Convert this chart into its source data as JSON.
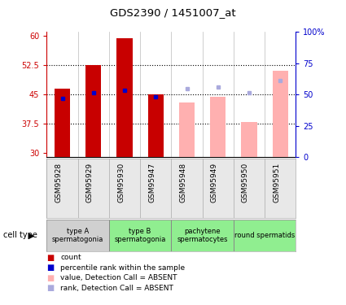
{
  "title": "GDS2390 / 1451007_at",
  "samples": [
    "GSM95928",
    "GSM95929",
    "GSM95930",
    "GSM95947",
    "GSM95948",
    "GSM95949",
    "GSM95950",
    "GSM95951"
  ],
  "ylim_left": [
    29,
    61
  ],
  "ylim_right": [
    0,
    100
  ],
  "yticks_left": [
    30,
    37.5,
    45,
    52.5,
    60
  ],
  "yticks_right": [
    0,
    25,
    50,
    75,
    100
  ],
  "ytick_labels_left": [
    "30",
    "37.5",
    "45",
    "52.5",
    "60"
  ],
  "ytick_labels_right": [
    "0",
    "25",
    "50",
    "75",
    "100%"
  ],
  "count_bars_present": [
    46.5,
    52.5,
    59.5,
    45.0,
    null,
    null,
    null,
    null
  ],
  "count_color": "#c80000",
  "absent_value_bars": [
    null,
    null,
    null,
    null,
    43.0,
    44.5,
    38.0,
    51.0
  ],
  "absent_value_color": "#ffb0b0",
  "percentile_rank_present": [
    44.0,
    45.5,
    46.0,
    44.5,
    null,
    null,
    null,
    null
  ],
  "percentile_color": "#0000cc",
  "rank_absent": [
    null,
    null,
    null,
    null,
    46.5,
    47.0,
    45.5,
    48.5
  ],
  "rank_absent_color": "#aaaadd",
  "cell_type_groups": [
    {
      "label": "type A\nspermatogonia",
      "start": 0,
      "end": 2,
      "color": "#d0d0d0"
    },
    {
      "label": "type B\nspermatogonia",
      "start": 2,
      "end": 4,
      "color": "#90ee90"
    },
    {
      "label": "pachytene\nspermatocytes",
      "start": 4,
      "end": 6,
      "color": "#90ee90"
    },
    {
      "label": "round spermatids",
      "start": 6,
      "end": 8,
      "color": "#90ee90"
    }
  ],
  "legend_items": [
    {
      "label": "count",
      "color": "#c80000"
    },
    {
      "label": "percentile rank within the sample",
      "color": "#0000cc"
    },
    {
      "label": "value, Detection Call = ABSENT",
      "color": "#ffb0b0"
    },
    {
      "label": "rank, Detection Call = ABSENT",
      "color": "#aaaadd"
    }
  ],
  "left_axis_color": "#cc0000",
  "right_axis_color": "#0000cc",
  "bar_width": 0.5
}
